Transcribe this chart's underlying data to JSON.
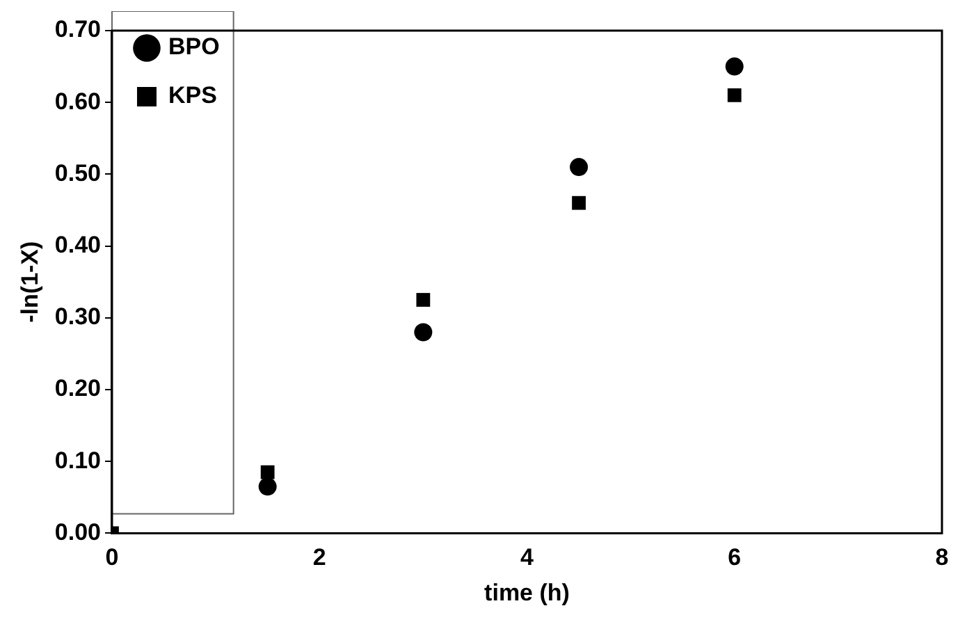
{
  "chart_data": {
    "type": "scatter",
    "xlabel": "time (h)",
    "ylabel": "-ln(1-X)",
    "x": [
      0,
      1.5,
      3,
      4.5,
      6
    ],
    "series": [
      {
        "name": "BPO",
        "color": "#000000",
        "marker": "circle",
        "values": [
          null,
          0.065,
          0.28,
          0.51,
          0.65
        ]
      },
      {
        "name": "KPS",
        "color": "#000000",
        "marker": "square",
        "values": [
          0,
          0.085,
          0.325,
          0.46,
          0.61
        ]
      }
    ],
    "xlim": [
      0,
      8
    ],
    "xticks": [
      0,
      2,
      4,
      6,
      8
    ],
    "ylim": [
      0,
      0.7
    ],
    "yticks": [
      {
        "value": 0,
        "label": "0.00"
      },
      {
        "value": 0.1,
        "label": "0.10"
      },
      {
        "value": 0.2,
        "label": "0.20"
      },
      {
        "value": 0.3,
        "label": "0.30"
      },
      {
        "value": 0.4,
        "label": "0.40"
      },
      {
        "value": 0.5,
        "label": "0.50"
      },
      {
        "value": 0.6,
        "label": "0.60"
      },
      {
        "value": 0.7,
        "label": "0.70"
      }
    ],
    "grid": false,
    "legend": "top left"
  }
}
